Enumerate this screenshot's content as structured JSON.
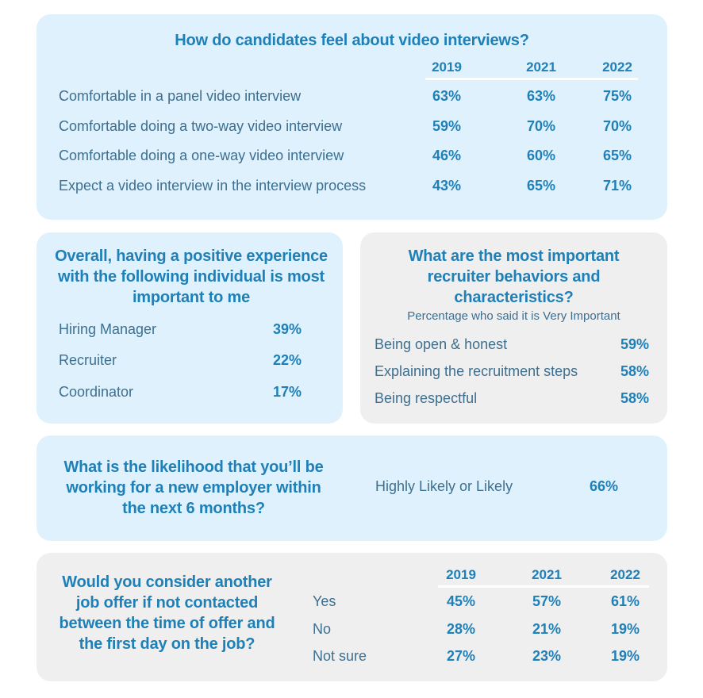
{
  "chart_data": [
    {
      "type": "table",
      "title": "How do candidates feel about video interviews?",
      "columns": [
        "2019",
        "2021",
        "2022"
      ],
      "rows": [
        {
          "label": "Comfortable in a panel video interview",
          "values": [
            "63%",
            "63%",
            "75%"
          ]
        },
        {
          "label": "Comfortable doing a two-way video interview",
          "values": [
            "59%",
            "70%",
            "70%"
          ]
        },
        {
          "label": "Comfortable doing a one-way video interview",
          "values": [
            "46%",
            "60%",
            "65%"
          ]
        },
        {
          "label": "Expect a video interview in the interview process",
          "values": [
            "43%",
            "65%",
            "71%"
          ]
        }
      ]
    },
    {
      "type": "table",
      "title": "Overall, having a positive experience with the following individual is most important to me",
      "rows": [
        {
          "label": "Hiring Manager",
          "value": "39%"
        },
        {
          "label": "Recruiter",
          "value": "22%"
        },
        {
          "label": "Coordinator",
          "value": "17%"
        }
      ]
    },
    {
      "type": "table",
      "title": "What are the most important recruiter behaviors and characteristics?",
      "subtitle": "Percentage who said it is Very Important",
      "rows": [
        {
          "label": "Being open & honest",
          "value": "59%"
        },
        {
          "label": "Explaining the recruitment steps",
          "value": "58%"
        },
        {
          "label": "Being respectful",
          "value": "58%"
        }
      ]
    },
    {
      "type": "table",
      "title": "What is the likelihood that you’ll be working for a new employer within the next 6 months?",
      "rows": [
        {
          "label": "Highly Likely or Likely",
          "value": "66%"
        }
      ]
    },
    {
      "type": "table",
      "title": "Would you consider another job offer if not contacted between the time of offer and the first day on the job?",
      "columns": [
        "2019",
        "2021",
        "2022"
      ],
      "rows": [
        {
          "label": "Yes",
          "values": [
            "45%",
            "57%",
            "61%"
          ]
        },
        {
          "label": "No",
          "values": [
            "28%",
            "21%",
            "19%"
          ]
        },
        {
          "label": "Not sure",
          "values": [
            "27%",
            "23%",
            "19%"
          ]
        }
      ]
    }
  ]
}
